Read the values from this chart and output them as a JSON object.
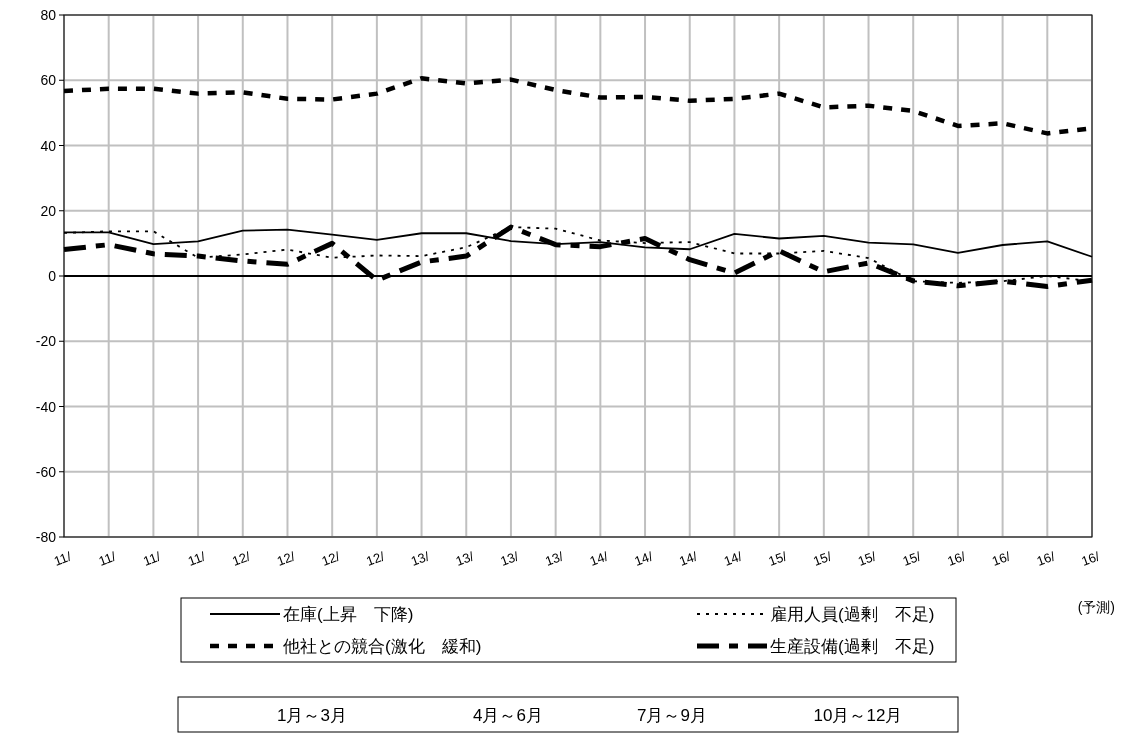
{
  "chart_data": {
    "type": "line",
    "categories": [
      "11/",
      "11/",
      "11/",
      "11/",
      "12/",
      "12/",
      "12/",
      "12/",
      "13/",
      "13/",
      "13/",
      "13/",
      "14/",
      "14/",
      "14/",
      "14/",
      "15/",
      "15/",
      "15/",
      "15/",
      "16/",
      "16/",
      "16/",
      "16/"
    ],
    "series": [
      {
        "name": "在庫(上昇　下降)",
        "color": "#000000",
        "line_style": "solid",
        "values": [
          13.4,
          13.4,
          9.8,
          10.6,
          13.9,
          14.2,
          12.7,
          11.1,
          13.1,
          13.1,
          10.7,
          9.8,
          10.4,
          8.8,
          8.2,
          12.9,
          11.5,
          12.3,
          10.2,
          9.7,
          7.1,
          9.5,
          10.6,
          5.9
        ]
      },
      {
        "name": "雇用人員(過剰　不足)",
        "color": "#000000",
        "line_style": "dotted",
        "values": [
          13.2,
          13.7,
          13.7,
          5.6,
          6.6,
          8.1,
          5.6,
          6.3,
          6.1,
          8.8,
          15,
          14.5,
          10.9,
          10.1,
          10.4,
          6.9,
          6.9,
          7.7,
          5.5,
          -1.6,
          -2.1,
          -1.6,
          0,
          -1.6
        ]
      },
      {
        "name": "他社との競合(激化　緩和)",
        "color": "#000000",
        "line_style": "dashed",
        "values": [
          56.7,
          57.4,
          57.4,
          55.9,
          56.3,
          54.3,
          54.1,
          55.9,
          60.6,
          59,
          60.2,
          57,
          54.7,
          54.9,
          53.7,
          54.3,
          55.9,
          51.7,
          52.2,
          50.6,
          46,
          46.8,
          43.7,
          45.3
        ]
      },
      {
        "name": "生産設備(過剰　不足)",
        "color": "#000000",
        "line_style": "dashed",
        "values": [
          8.1,
          9.6,
          6.8,
          6.1,
          4.6,
          3.6,
          10,
          -1.3,
          4.3,
          6.1,
          15,
          9.6,
          9,
          11.5,
          5,
          0.9,
          7.7,
          1.3,
          4,
          -1.5,
          -3,
          -1.6,
          -3.2,
          -1.3
        ]
      }
    ],
    "ylim": [
      -80,
      80
    ],
    "yticks": [
      -80,
      -60,
      -40,
      -20,
      0,
      20,
      40,
      60,
      80
    ],
    "ref_lines": [
      {
        "axis": "y",
        "value": 0,
        "color": "#000000"
      }
    ],
    "grid": true,
    "legend": "bottom",
    "annotations": [
      "(予測)",
      "1月～3月",
      "4月～6月",
      "7月～9月",
      "10月～12月"
    ]
  }
}
